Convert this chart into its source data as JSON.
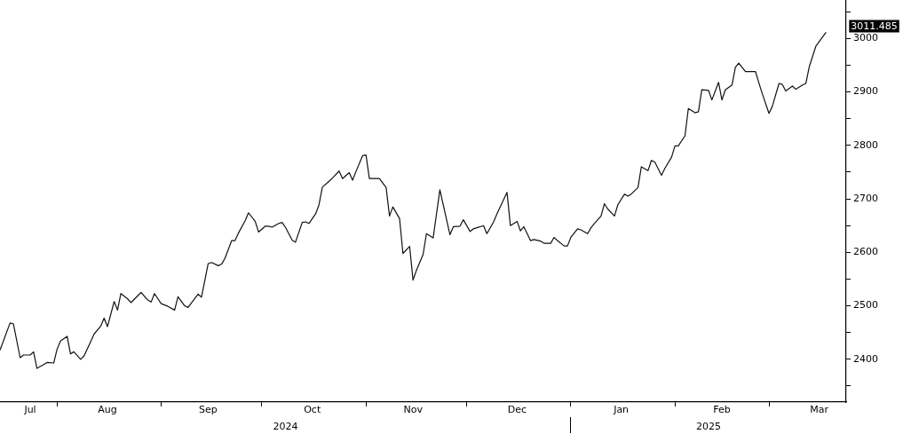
{
  "chart_data": {
    "type": "line",
    "x": [
      "2024-07-15",
      "2024-07-18",
      "2024-07-19",
      "2024-07-21",
      "2024-07-22",
      "2024-07-24",
      "2024-07-25",
      "2024-07-26",
      "2024-07-28",
      "2024-07-29",
      "2024-07-31",
      "2024-08-01",
      "2024-08-02",
      "2024-08-04",
      "2024-08-05",
      "2024-08-06",
      "2024-08-08",
      "2024-08-09",
      "2024-08-11",
      "2024-08-12",
      "2024-08-14",
      "2024-08-15",
      "2024-08-16",
      "2024-08-18",
      "2024-08-19",
      "2024-08-20",
      "2024-08-22",
      "2024-08-23",
      "2024-08-26",
      "2024-08-28",
      "2024-08-29",
      "2024-08-30",
      "2024-09-01",
      "2024-09-03",
      "2024-09-05",
      "2024-09-06",
      "2024-09-08",
      "2024-09-09",
      "2024-09-12",
      "2024-09-13",
      "2024-09-15",
      "2024-09-16",
      "2024-09-18",
      "2024-09-19",
      "2024-09-20",
      "2024-09-22",
      "2024-09-23",
      "2024-09-24",
      "2024-09-26",
      "2024-09-27",
      "2024-09-29",
      "2024-09-30",
      "2024-10-02",
      "2024-10-03",
      "2024-10-04",
      "2024-10-06",
      "2024-10-07",
      "2024-10-08",
      "2024-10-10",
      "2024-10-11",
      "2024-10-13",
      "2024-10-14",
      "2024-10-15",
      "2024-10-17",
      "2024-10-18",
      "2024-10-19",
      "2024-10-21",
      "2024-10-22",
      "2024-10-24",
      "2024-10-25",
      "2024-10-27",
      "2024-10-28",
      "2024-10-29",
      "2024-10-31",
      "2024-11-01",
      "2024-11-02",
      "2024-11-05",
      "2024-11-07",
      "2024-11-08",
      "2024-11-09",
      "2024-11-11",
      "2024-11-12",
      "2024-11-14",
      "2024-11-15",
      "2024-11-16",
      "2024-11-18",
      "2024-11-19",
      "2024-11-21",
      "2024-11-23",
      "2024-11-26",
      "2024-11-27",
      "2024-11-29",
      "2024-11-30",
      "2024-12-02",
      "2024-12-03",
      "2024-12-04",
      "2024-12-06",
      "2024-12-07",
      "2024-12-09",
      "2024-12-10",
      "2024-12-13",
      "2024-12-14",
      "2024-12-16",
      "2024-12-17",
      "2024-12-18",
      "2024-12-20",
      "2024-12-21",
      "2024-12-23",
      "2024-12-24",
      "2024-12-26",
      "2024-12-27",
      "2024-12-28",
      "2024-12-30",
      "2024-12-31",
      "2025-01-01",
      "2025-01-03",
      "2025-01-04",
      "2025-01-06",
      "2025-01-07",
      "2025-01-08",
      "2025-01-10",
      "2025-01-11",
      "2025-01-12",
      "2025-01-14",
      "2025-01-15",
      "2025-01-17",
      "2025-01-18",
      "2025-01-19",
      "2025-01-21",
      "2025-01-22",
      "2025-01-24",
      "2025-01-25",
      "2025-01-26",
      "2025-01-28",
      "2025-01-29",
      "2025-01-31",
      "2025-02-01",
      "2025-02-02",
      "2025-02-04",
      "2025-02-05",
      "2025-02-07",
      "2025-02-08",
      "2025-02-09",
      "2025-02-11",
      "2025-02-12",
      "2025-02-14",
      "2025-02-15",
      "2025-02-16",
      "2025-02-18",
      "2025-02-19",
      "2025-02-20",
      "2025-02-22",
      "2025-02-25",
      "2025-02-26",
      "2025-02-27",
      "2025-03-01",
      "2025-03-02",
      "2025-03-04",
      "2025-03-05",
      "2025-03-06",
      "2025-03-08",
      "2025-03-09",
      "2025-03-11",
      "2025-03-12",
      "2025-03-13",
      "2025-03-15",
      "2025-03-18"
    ],
    "series": [
      {
        "color": "#111111",
        "values": [
          2417,
          2468,
          2466,
          2403,
          2408,
          2408,
          2414,
          2383,
          2390,
          2394,
          2393,
          2419,
          2434,
          2443,
          2410,
          2414,
          2400,
          2406,
          2433,
          2447,
          2462,
          2477,
          2461,
          2508,
          2492,
          2523,
          2513,
          2506,
          2525,
          2511,
          2507,
          2523,
          2504,
          2499,
          2492,
          2517,
          2500,
          2497,
          2522,
          2516,
          2579,
          2581,
          2575,
          2578,
          2589,
          2622,
          2622,
          2636,
          2659,
          2674,
          2658,
          2638,
          2649,
          2649,
          2647,
          2654,
          2656,
          2647,
          2623,
          2619,
          2656,
          2657,
          2654,
          2672,
          2689,
          2722,
          2733,
          2739,
          2752,
          2738,
          2749,
          2735,
          2751,
          2781,
          2782,
          2738,
          2738,
          2721,
          2668,
          2685,
          2663,
          2598,
          2611,
          2548,
          2566,
          2596,
          2635,
          2627,
          2717,
          2633,
          2648,
          2649,
          2661,
          2639,
          2644,
          2646,
          2650,
          2635,
          2657,
          2672,
          2712,
          2650,
          2658,
          2640,
          2648,
          2622,
          2624,
          2621,
          2617,
          2617,
          2628,
          2622,
          2612,
          2612,
          2628,
          2644,
          2642,
          2635,
          2646,
          2654,
          2668,
          2691,
          2681,
          2668,
          2689,
          2709,
          2705,
          2709,
          2721,
          2760,
          2753,
          2772,
          2769,
          2744,
          2757,
          2778,
          2799,
          2799,
          2818,
          2869,
          2861,
          2863,
          2904,
          2903,
          2885,
          2918,
          2885,
          2904,
          2913,
          2946,
          2954,
          2938,
          2938,
          2917,
          2897,
          2860,
          2873,
          2916,
          2914,
          2902,
          2911,
          2905,
          2913,
          2916,
          2947,
          2986,
          3011.485
        ]
      }
    ],
    "xlim": [
      "2024-07-15",
      "2025-03-24"
    ],
    "xticks": [
      {
        "value": "2024-07-24",
        "label": "Jul"
      },
      {
        "value": "2024-08-01",
        "label": null
      },
      {
        "value": "2024-08-16",
        "label": "Aug"
      },
      {
        "value": "2024-09-01",
        "label": null
      },
      {
        "value": "2024-09-15",
        "label": "Sep"
      },
      {
        "value": "2024-10-01",
        "label": null
      },
      {
        "value": "2024-10-16",
        "label": "Oct"
      },
      {
        "value": "2024-11-01",
        "label": null
      },
      {
        "value": "2024-11-15",
        "label": "Nov"
      },
      {
        "value": "2024-12-01",
        "label": null
      },
      {
        "value": "2024-12-16",
        "label": "Dec"
      },
      {
        "value": "2025-01-01",
        "label": null
      },
      {
        "value": "2025-01-16",
        "label": "Jan"
      },
      {
        "value": "2025-02-01",
        "label": null
      },
      {
        "value": "2025-02-15",
        "label": "Feb"
      },
      {
        "value": "2025-03-01",
        "label": null
      },
      {
        "value": "2025-03-16",
        "label": "Mar"
      }
    ],
    "x2lim": [
      "2024-07-15",
      "2025-03-24"
    ],
    "x2ticks": [
      {
        "value": "2024-10-08",
        "label": "2024"
      },
      {
        "value": "2025-01-01",
        "label": null
      },
      {
        "value": "2025-02-11",
        "label": "2025"
      }
    ],
    "ylim": [
      2320,
      3072
    ],
    "yticks": [
      {
        "value": 2350,
        "label": null
      },
      2400,
      {
        "value": 2450,
        "label": null
      },
      2500,
      {
        "value": 2550,
        "label": null
      },
      2600,
      {
        "value": 2650,
        "label": null
      },
      2700,
      {
        "value": 2750,
        "label": null
      },
      2800,
      {
        "value": 2850,
        "label": null
      },
      2900,
      {
        "value": 2950,
        "label": null
      },
      3000,
      {
        "value": 3050,
        "label": null
      }
    ],
    "annotations": [
      {
        "text": "3011.485",
        "x": "2025-03-18",
        "y": 3011.485
      }
    ]
  }
}
